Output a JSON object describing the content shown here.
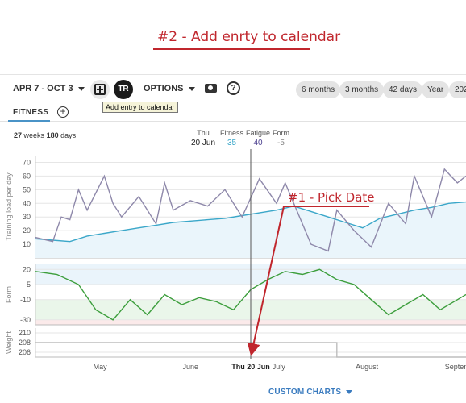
{
  "annotations": {
    "add_entry": "#2 - Add enrty to calendar",
    "pick_date": "#1 - Pick Date"
  },
  "toolbar": {
    "date_range": "APR 7 - OCT 3",
    "options_label": "OPTIONS",
    "avatar_text": "TR",
    "help_label": "?",
    "range_chips": [
      "6 months",
      "3 months",
      "42 days",
      "Year",
      "202"
    ],
    "tooltip": "Add entry to calendar"
  },
  "tabs": {
    "fitness_label": "FITNESS",
    "add_label": "+"
  },
  "summary": {
    "weeks_num": "27",
    "weeks_label": "weeks",
    "days_num": "180",
    "days_label": "days"
  },
  "readout": {
    "day": "Thu",
    "date": "20 Jun",
    "fitness_label": "Fitness",
    "fitness_value": "35",
    "fatigue_label": "Fatigue",
    "fatigue_value": "40",
    "form_label": "Form",
    "form_value": "-5"
  },
  "chart_data": {
    "type": "line",
    "panels": [
      {
        "name": "training-load",
        "ylabel": "Training load per day",
        "yticks": [
          10,
          20,
          30,
          40,
          50,
          60,
          70
        ],
        "ylim": [
          0,
          75
        ],
        "series": [
          {
            "name": "Fitness",
            "color": "#3ba7c9",
            "x": [
              0,
              0.04,
              0.08,
              0.12,
              0.16,
              0.2,
              0.24,
              0.28,
              0.32,
              0.36,
              0.4,
              0.44,
              0.48,
              0.52,
              0.56,
              0.6,
              0.64,
              0.68,
              0.72,
              0.76,
              0.8,
              0.84,
              0.88,
              0.92,
              0.96,
              1.0
            ],
            "values": [
              14,
              13,
              12,
              16,
              18,
              20,
              22,
              24,
              26,
              27,
              28,
              29,
              31,
              33,
              35,
              38,
              34,
              30,
              26,
              22,
              29,
              32,
              35,
              37,
              40,
              41
            ]
          },
          {
            "name": "Fatigue",
            "color": "#8e88aa",
            "x": [
              0,
              0.04,
              0.06,
              0.08,
              0.1,
              0.12,
              0.16,
              0.18,
              0.2,
              0.24,
              0.28,
              0.3,
              0.32,
              0.36,
              0.4,
              0.44,
              0.48,
              0.52,
              0.56,
              0.58,
              0.6,
              0.64,
              0.68,
              0.7,
              0.74,
              0.78,
              0.82,
              0.86,
              0.88,
              0.92,
              0.95,
              0.98,
              1.0
            ],
            "values": [
              15,
              12,
              30,
              28,
              50,
              35,
              60,
              40,
              30,
              45,
              25,
              55,
              35,
              42,
              38,
              50,
              30,
              58,
              40,
              55,
              40,
              10,
              5,
              35,
              20,
              8,
              40,
              25,
              60,
              30,
              65,
              55,
              60
            ]
          }
        ]
      },
      {
        "name": "form",
        "ylabel": "Form",
        "yticks": [
          20,
          5,
          -10,
          -30
        ],
        "ylim": [
          -35,
          25
        ],
        "series": [
          {
            "name": "Form",
            "color": "#3c9e3c",
            "x": [
              0,
              0.05,
              0.1,
              0.14,
              0.18,
              0.22,
              0.26,
              0.3,
              0.34,
              0.38,
              0.42,
              0.46,
              0.5,
              0.54,
              0.58,
              0.62,
              0.66,
              0.7,
              0.74,
              0.78,
              0.82,
              0.86,
              0.9,
              0.94,
              0.98,
              1.0
            ],
            "values": [
              18,
              15,
              5,
              -20,
              -30,
              -10,
              -25,
              -5,
              -15,
              -8,
              -12,
              -20,
              0,
              10,
              18,
              15,
              20,
              10,
              5,
              -10,
              -25,
              -15,
              -5,
              -20,
              -10,
              -5
            ]
          }
        ]
      },
      {
        "name": "weight",
        "ylabel": "Weight",
        "yticks": [
          210,
          208,
          206
        ],
        "ylim": [
          205,
          211
        ],
        "series": [
          {
            "name": "Weight",
            "color": "#bdbdbd",
            "x": [
              0,
              0.7,
              0.7,
              1.0
            ],
            "values": [
              208,
              208,
              205,
              205
            ]
          }
        ]
      }
    ],
    "xticks": [
      "May",
      "June",
      "Thu 20 Jun",
      "July",
      "August",
      "Septem"
    ],
    "cursor_label": "Thu 20 Jun",
    "custom_charts_label": "CUSTOM CHARTS"
  }
}
